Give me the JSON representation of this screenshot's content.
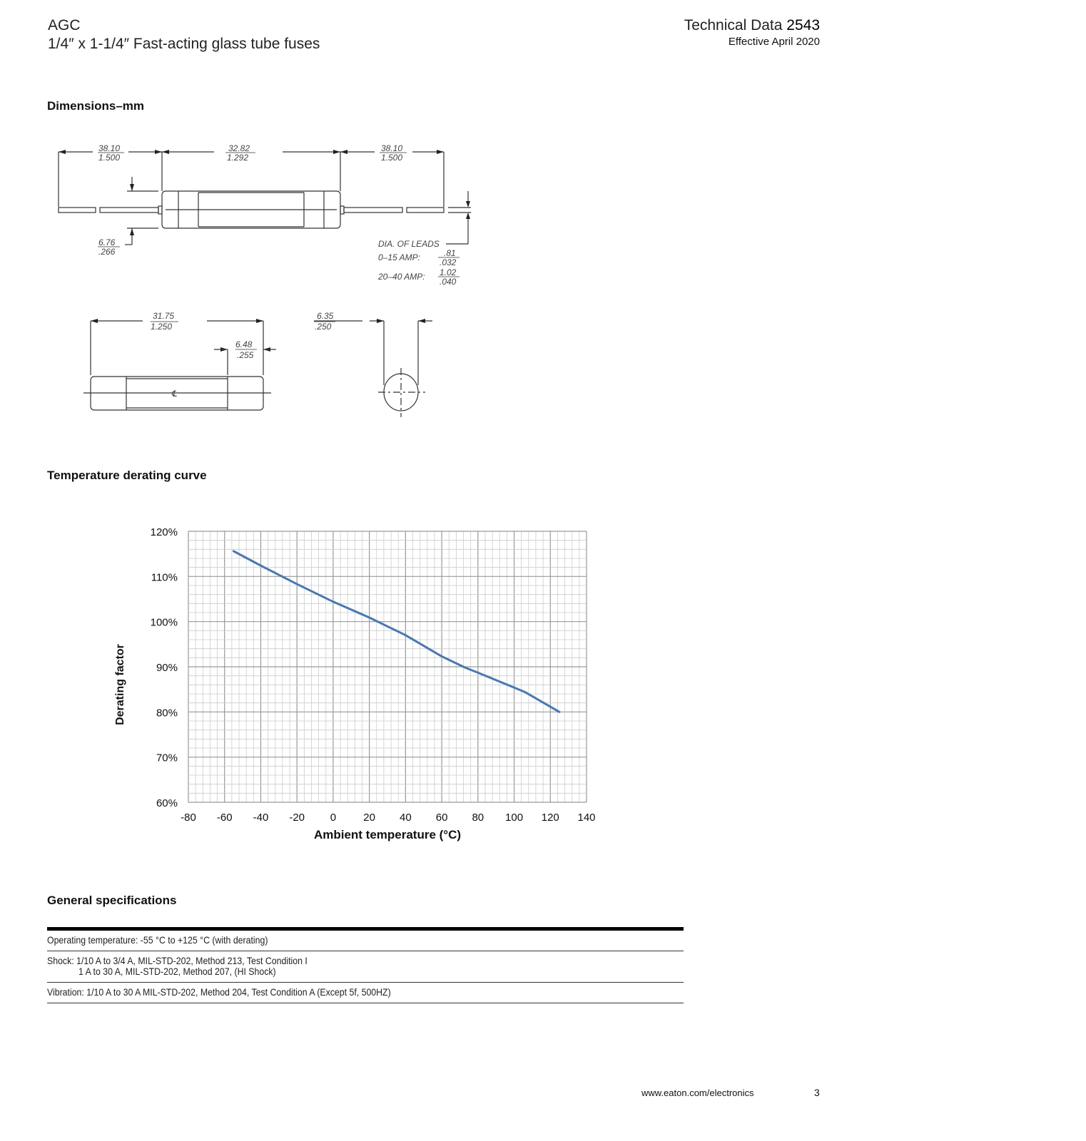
{
  "header": {
    "product": "AGC",
    "subtitle": "1/4″ x 1-1/4″ Fast-acting glass tube fuses",
    "doc_label": "Technical Data",
    "doc_number": "2543",
    "effective": "Effective April 2020"
  },
  "dimensions": {
    "heading": "Dimensions–mm",
    "top_left_mm": "38.10",
    "top_left_in": "1.500",
    "top_mid_mm": "32.82",
    "top_mid_in": "1.292",
    "top_right_mm": "38.10",
    "top_right_in": "1.500",
    "cap_dia_mm": "6.76",
    "cap_dia_in": ".266",
    "leads_label": "DIA. OF LEADS",
    "leads_0_15_label": "0–15 AMP:",
    "leads_0_15_mm": ".81",
    "leads_0_15_in": ".032",
    "leads_20_40_label": "20–40 AMP:",
    "leads_20_40_mm": "1.02",
    "leads_20_40_in": ".040",
    "body_len_mm": "31.75",
    "body_len_in": "1.250",
    "cap_len_mm": "6.48",
    "cap_len_in": ".255",
    "diameter_mm": "6.35",
    "diameter_in": ".250",
    "centerline_symbol": "℄"
  },
  "derating": {
    "heading": "Temperature derating curve"
  },
  "chart_data": {
    "type": "line",
    "xlabel": "Ambient temperature (°C)",
    "ylabel": "Derating factor",
    "xlim": [
      -80,
      140
    ],
    "ylim": [
      60,
      120
    ],
    "xticks": [
      "-80",
      "-60",
      "-40",
      "-20",
      "0",
      "20",
      "40",
      "60",
      "80",
      "100",
      "120",
      "140"
    ],
    "yticks": [
      "60%",
      "70%",
      "80%",
      "90%",
      "100%",
      "110%",
      "120%"
    ],
    "grid": true,
    "line_color": "#4a78b0",
    "x": [
      -55,
      -40,
      -20,
      0,
      20,
      40,
      60,
      73,
      80,
      100,
      106,
      125
    ],
    "y": [
      115.6,
      112.4,
      108.3,
      104.4,
      100.9,
      97.0,
      92.3,
      89.8,
      88.7,
      85.4,
      84.4,
      80.0
    ]
  },
  "specs": {
    "heading": "General specifications",
    "rows": [
      {
        "line1": "Operating temperature: -55 °C to +125 °C (with derating)"
      },
      {
        "line1": "Shock: 1/10 A to 3/4 A, MIL-STD-202, Method 213, Test Condition I",
        "line2": "1 A to 30 A,  MIL-STD-202, Method 207, (HI Shock)"
      },
      {
        "line1": "Vibration: 1/10 A to 30 A MIL-STD-202, Method 204, Test Condition A (Except 5f, 500HZ)"
      }
    ]
  },
  "footer": {
    "url": "www.eaton.com/electronics",
    "page": "3"
  }
}
